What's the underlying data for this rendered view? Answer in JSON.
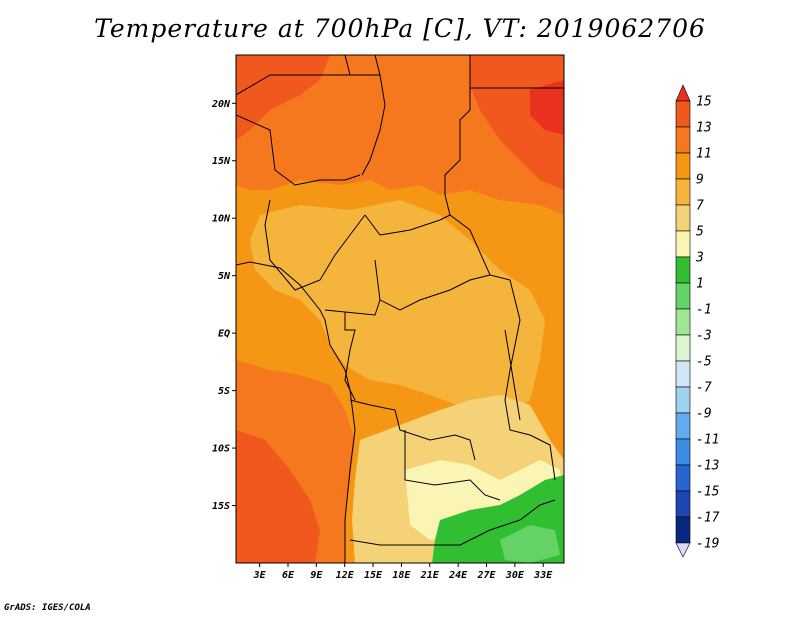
{
  "title": "Temperature at 700hPa [C], VT: 2019062706",
  "credit": "GrADS: IGES/COLA",
  "lat_axis": {
    "labels": [
      "20N",
      "15N",
      "10N",
      "5N",
      "EQ",
      "5S",
      "10S",
      "15S"
    ],
    "values": [
      20,
      15,
      10,
      5,
      0,
      -5,
      -10,
      -15
    ]
  },
  "lon_axis": {
    "labels": [
      "3E",
      "6E",
      "9E",
      "12E",
      "15E",
      "18E",
      "21E",
      "24E",
      "27E",
      "30E",
      "33E"
    ],
    "values": [
      3,
      6,
      9,
      12,
      15,
      18,
      21,
      24,
      27,
      30,
      33
    ]
  },
  "map_extent": {
    "lon": [
      0.5,
      35.2
    ],
    "lat": [
      -20,
      24.2
    ]
  },
  "colorbar": {
    "labels": [
      "15",
      "13",
      "11",
      "9",
      "7",
      "5",
      "3",
      "1",
      "-1",
      "-3",
      "-5",
      "-7",
      "-9",
      "-11",
      "-13",
      "-15",
      "-17",
      "-19"
    ],
    "colors": [
      "#e8321e",
      "#f0581e",
      "#f5781e",
      "#f59614",
      "#f5b43c",
      "#f5d278",
      "#faf5b4",
      "#32be32",
      "#64d264",
      "#a0e696",
      "#dcf5d2",
      "#d2e6f5",
      "#a0d2f0",
      "#64aaf0",
      "#3c8ce6",
      "#2864d2",
      "#1e46b4",
      "#0a2882",
      "#dcdcf5"
    ]
  }
}
